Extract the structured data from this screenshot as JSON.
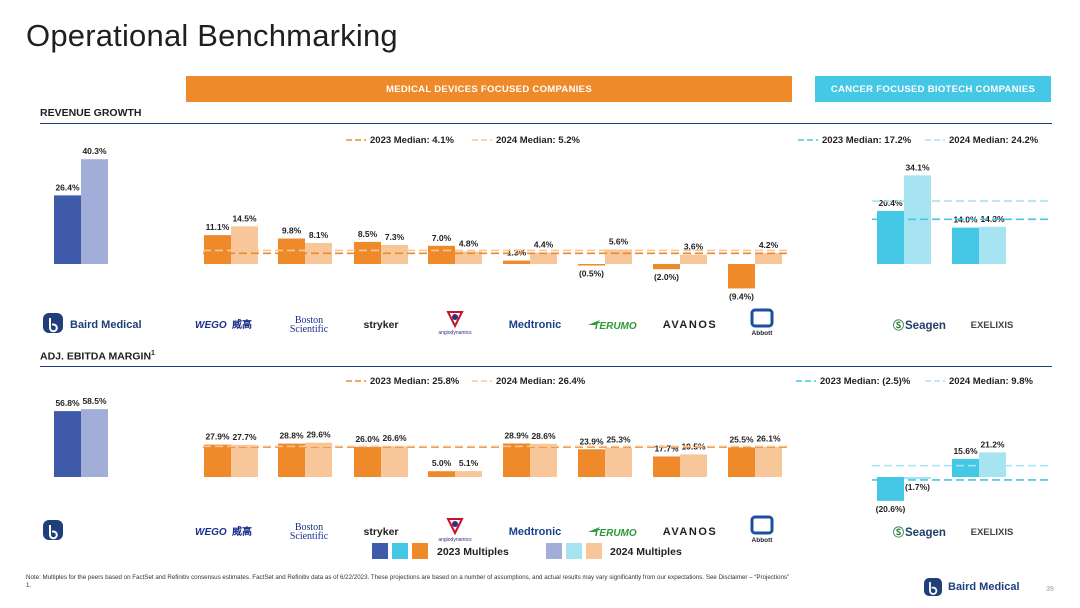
{
  "title": "Operational Benchmarking",
  "banners": {
    "medical": "MEDICAL DEVICES  FOCUSED COMPANIES",
    "cancer": "CANCER FOCUSED BIOTECH COMPANIES"
  },
  "colors": {
    "baird_2023": "#3f5aa8",
    "baird_2024": "#a2aed8",
    "med_2023": "#ee8a2a",
    "med_2024": "#f7c79a",
    "bio_2023": "#45c7e6",
    "bio_2024": "#a6e4f2",
    "orange_banner": "#ee8a2a",
    "cyan_banner": "#45c7e6",
    "navy": "#1f3f7a"
  },
  "companies": [
    "Baird Medical",
    "WEGO",
    "Boston Scientific",
    "stryker",
    "angiodynamics",
    "Medtronic",
    "TERUMO",
    "AVANOS",
    "Abbott",
    "Seagen",
    "EXELIXIS"
  ],
  "company_sub": {
    "boston": "Boston",
    "scientific": "Scientific",
    "wego_cn": "威高",
    "abbott": "Abbott",
    "angio": "angiodynamics",
    "seagen_prefix": "Ⓢ",
    "seagen": "Seagen"
  },
  "chart_data": [
    {
      "type": "bar",
      "title": "REVENUE GROWTH",
      "categories": [
        "Baird Medical",
        "WEGO",
        "Boston Scientific",
        "stryker",
        "angiodynamics",
        "Medtronic",
        "TERUMO",
        "AVANOS",
        "Abbott",
        "Seagen",
        "EXELIXIS"
      ],
      "series": [
        {
          "name": "2023",
          "values": [
            26.4,
            11.1,
            9.8,
            8.5,
            7.0,
            1.3,
            -0.5,
            -2.0,
            -9.4,
            20.4,
            14.0
          ]
        },
        {
          "name": "2024",
          "values": [
            40.3,
            14.5,
            8.1,
            7.3,
            4.8,
            4.4,
            5.6,
            3.6,
            4.2,
            34.1,
            14.3
          ]
        }
      ],
      "labels_2023": [
        "26.4%",
        "11.1%",
        "9.8%",
        "8.5%",
        "7.0%",
        "1.3%",
        "(0.5%)",
        "(2.0%)",
        "(9.4%)",
        "20.4%",
        "14.0%"
      ],
      "labels_2024": [
        "40.3%",
        "14.5%",
        "8.1%",
        "7.3%",
        "4.8%",
        "4.4%",
        "5.6%",
        "3.6%",
        "4.2%",
        "34.1%",
        "14.3%"
      ],
      "medians": {
        "medical_2023": {
          "label": "2023 Median: 4.1%",
          "value": 4.1
        },
        "medical_2024": {
          "label": "2024 Median: 5.2%",
          "value": 5.2
        },
        "biotech_2023": {
          "label": "2023 Median: 17.2%",
          "value": 17.2
        },
        "biotech_2024": {
          "label": "2024 Median: 24.2%",
          "value": 24.2
        }
      }
    },
    {
      "type": "bar",
      "title": "ADJ. EBITDA MARGIN",
      "title_sup": "1",
      "categories": [
        "Baird Medical",
        "WEGO",
        "Boston Scientific",
        "stryker",
        "angiodynamics",
        "Medtronic",
        "TERUMO",
        "AVANOS",
        "Abbott",
        "Seagen",
        "EXELIXIS"
      ],
      "series": [
        {
          "name": "2023",
          "values": [
            56.8,
            27.9,
            28.8,
            26.0,
            5.0,
            28.9,
            23.9,
            17.7,
            25.5,
            -20.6,
            15.6
          ]
        },
        {
          "name": "2024",
          "values": [
            58.5,
            27.7,
            29.6,
            26.6,
            5.1,
            28.6,
            25.3,
            19.5,
            26.1,
            -1.7,
            21.2
          ]
        }
      ],
      "labels_2023": [
        "56.8%",
        "27.9%",
        "28.8%",
        "26.0%",
        "5.0%",
        "28.9%",
        "23.9%",
        "17.7%",
        "25.5%",
        "(20.6%)",
        "15.6%"
      ],
      "labels_2024": [
        "58.5%",
        "27.7%",
        "29.6%",
        "26.6%",
        "5.1%",
        "28.6%",
        "25.3%",
        "19.5%",
        "26.1%",
        "(1.7%)",
        "21.2%"
      ],
      "medians": {
        "medical_2023": {
          "label": "2023 Median: 25.8%",
          "value": 25.8
        },
        "medical_2024": {
          "label": "2024 Median: 26.4%",
          "value": 26.4
        },
        "biotech_2023": {
          "label": "2023 Median: (2.5)%",
          "value": -2.5
        },
        "biotech_2024": {
          "label": "2024 Median: 9.8%",
          "value": 9.8
        }
      }
    }
  ],
  "legend": {
    "l2023": "2023 Multiples",
    "l2024": "2024 Multiples"
  },
  "footnote": "Note: Multiples for the peers based on FactSet and Refinitiv consensus estimates. FactSet and Refinitiv data as of 6/22/2023. These projections are based on a number of assumptions, and actual results may vary significantly from our expectations. See Disclaimer – “Projections”",
  "footnote_num": "1.",
  "brand": "Baird Medical",
  "page_number": "39"
}
